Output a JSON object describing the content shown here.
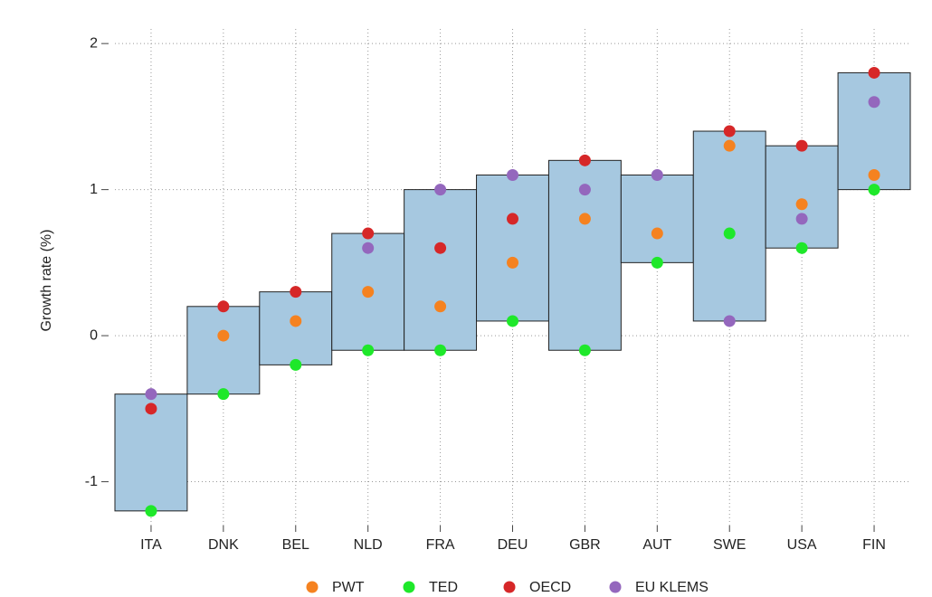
{
  "chart_data": {
    "type": "floating-range-dots",
    "y_label": "Growth rate (%)",
    "categories": [
      "ITA",
      "DNK",
      "BEL",
      "NLD",
      "FRA",
      "DEU",
      "GBR",
      "AUT",
      "SWE",
      "USA",
      "FIN"
    ],
    "series": [
      {
        "name": "PWT",
        "color": "#f58220",
        "values": [
          null,
          0,
          0.1,
          0.3,
          0.2,
          0.5,
          0.8,
          0.7,
          1.3,
          0.9,
          1.1
        ]
      },
      {
        "name": "TED",
        "color": "#1ee82a",
        "values": [
          -1.2,
          -0.4,
          -0.2,
          -0.1,
          -0.1,
          0.1,
          -0.1,
          0.5,
          0.7,
          0.6,
          1.0
        ]
      },
      {
        "name": "OECD",
        "color": "#d62728",
        "values": [
          -0.5,
          0.2,
          0.3,
          0.7,
          0.6,
          0.8,
          1.2,
          null,
          1.4,
          1.3,
          1.8
        ]
      },
      {
        "name": "EU KLEMS",
        "color": "#9467bd",
        "values": [
          -0.4,
          null,
          null,
          0.6,
          1.0,
          1.1,
          1.0,
          1.1,
          0.1,
          0.8,
          1.6
        ]
      }
    ],
    "box_color": "#a6c8e0",
    "ylim": [
      -1.3,
      2.1
    ],
    "yticks": [
      -1,
      0,
      1,
      2
    ],
    "grid": true,
    "legend": "bottom"
  }
}
